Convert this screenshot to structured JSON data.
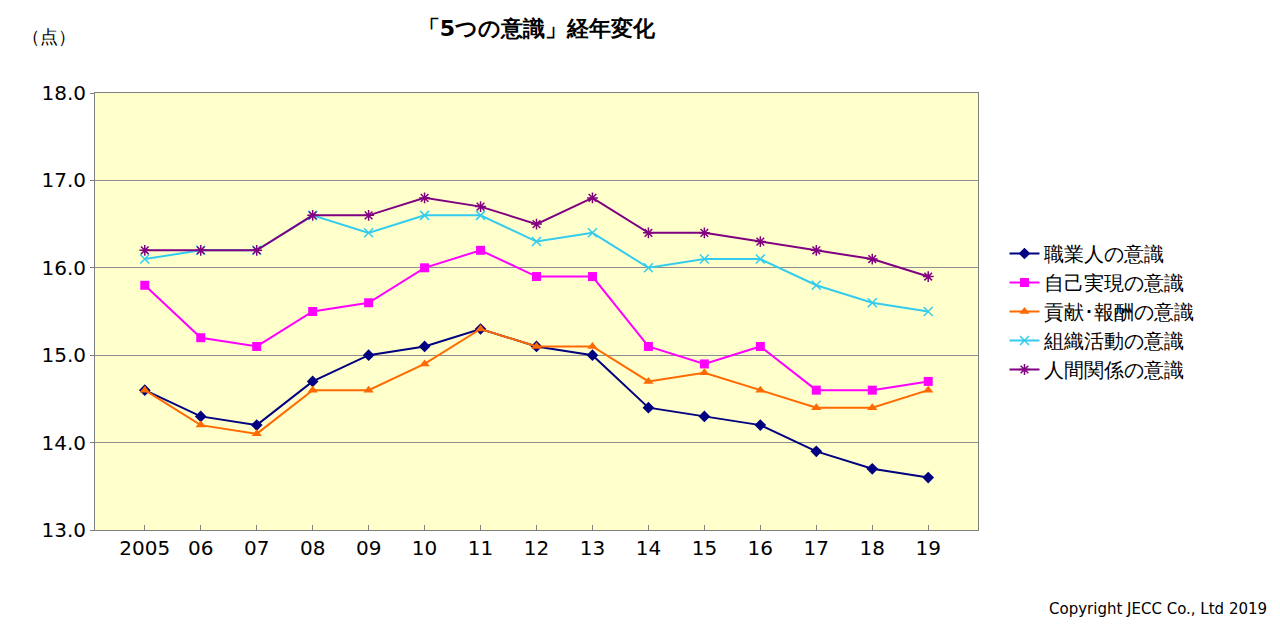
{
  "chart_data": {
    "type": "line",
    "title": "「5つの意識」経年変化",
    "ylabel": "（点）",
    "annotations": [
      "Copyright JECC Co., Ltd 2019"
    ],
    "categories": [
      "2005",
      "06",
      "07",
      "08",
      "09",
      "10",
      "11",
      "12",
      "13",
      "14",
      "15",
      "16",
      "17",
      "18",
      "19"
    ],
    "series": [
      {
        "name": "職業人の意識",
        "color": "#000080",
        "marker": "diamond",
        "values": [
          14.6,
          14.3,
          14.2,
          14.7,
          15.0,
          15.1,
          15.3,
          15.1,
          15.0,
          14.4,
          14.3,
          14.2,
          13.9,
          13.7,
          13.6
        ]
      },
      {
        "name": "自己実現の意識",
        "color": "#ff00ff",
        "marker": "square",
        "values": [
          15.8,
          15.2,
          15.1,
          15.5,
          15.6,
          16.0,
          16.2,
          15.9,
          15.9,
          15.1,
          14.9,
          15.1,
          14.6,
          14.6,
          14.7
        ]
      },
      {
        "name": "貢献･報酬の意識",
        "color": "#ff6a00",
        "marker": "triangle",
        "values": [
          14.6,
          14.2,
          14.1,
          14.6,
          14.6,
          14.9,
          15.3,
          15.1,
          15.1,
          14.7,
          14.8,
          14.6,
          14.4,
          14.4,
          14.6
        ]
      },
      {
        "name": "組織活動の意識",
        "color": "#33ccee",
        "marker": "x",
        "values": [
          16.1,
          16.2,
          16.2,
          16.6,
          16.4,
          16.6,
          16.6,
          16.3,
          16.4,
          16.0,
          16.1,
          16.1,
          15.8,
          15.6,
          15.5
        ]
      },
      {
        "name": "人間関係の意識",
        "color": "#800080",
        "marker": "asterisk",
        "values": [
          16.2,
          16.2,
          16.2,
          16.6,
          16.6,
          16.8,
          16.7,
          16.5,
          16.8,
          16.4,
          16.4,
          16.3,
          16.2,
          16.1,
          15.9
        ]
      }
    ],
    "ylim": [
      13,
      18
    ],
    "yticks": [
      {
        "value": 13,
        "label": "13.0"
      },
      {
        "value": 14,
        "label": "14.0"
      },
      {
        "value": 15,
        "label": "15.0"
      },
      {
        "value": 16,
        "label": "16.0"
      },
      {
        "value": 17,
        "label": "17.0"
      },
      {
        "value": 18,
        "label": "18.0"
      }
    ],
    "grid": true,
    "legend": "right"
  }
}
